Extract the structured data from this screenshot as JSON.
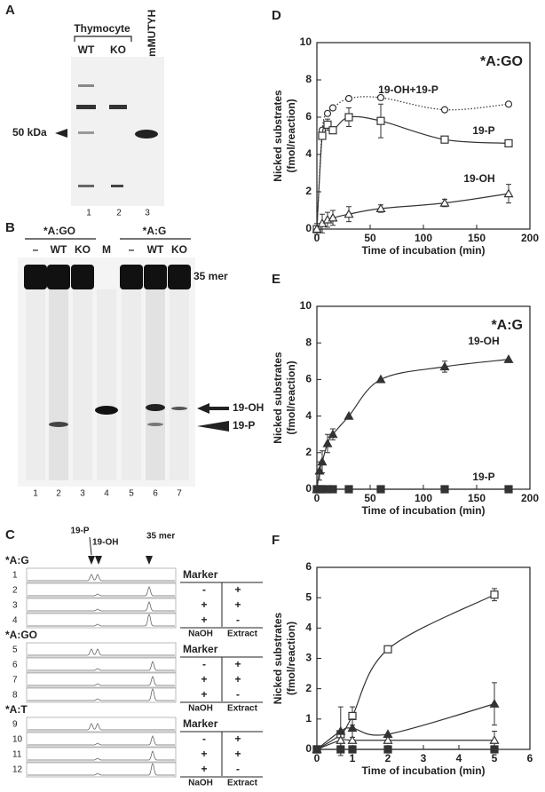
{
  "panels": {
    "A": {
      "label": "A",
      "group": "Thymocyte",
      "lanes": [
        "WT",
        "KO",
        "mMUTYH"
      ],
      "marker": "50 kDa",
      "numbers": [
        "1",
        "2",
        "3"
      ]
    },
    "B": {
      "label": "B",
      "groups": [
        "*A:GO",
        "*A:G"
      ],
      "lanes": [
        "–",
        "WT",
        "KO",
        "M",
        "–",
        "WT",
        "KO"
      ],
      "bands": [
        "35 mer",
        "19-OH",
        "19-P"
      ],
      "numbers": [
        "1",
        "2",
        "3",
        "4",
        "5",
        "6",
        "7"
      ]
    },
    "C": {
      "label": "C",
      "peaks": [
        "19-P",
        "19-OH",
        "35 mer"
      ],
      "groups": [
        {
          "name": "*A:G",
          "rows": [
            "1",
            "2",
            "3",
            "4"
          ]
        },
        {
          "name": "*A:GO",
          "rows": [
            "5",
            "6",
            "7",
            "8"
          ]
        },
        {
          "name": "*A:T",
          "rows": [
            "9",
            "10",
            "11",
            "12"
          ]
        }
      ],
      "table": {
        "header": "Marker",
        "rows": [
          [
            "-",
            "+"
          ],
          [
            "+",
            "+"
          ],
          [
            "+",
            "-"
          ]
        ],
        "footer": [
          "NaOH",
          "Extract"
        ]
      }
    }
  },
  "chart_data": [
    {
      "type": "line",
      "panel": "D",
      "title": "*A:GO",
      "xlabel": "Time of incubation (min)",
      "ylabel": [
        "Nicked substrates",
        "(fmol/reaction)"
      ],
      "x": [
        0,
        5,
        10,
        15,
        30,
        60,
        120,
        180
      ],
      "xlim": [
        0,
        200
      ],
      "xticks": [
        0,
        50,
        100,
        150,
        200
      ],
      "ylim": [
        0,
        10
      ],
      "yticks": [
        0,
        2,
        4,
        6,
        8,
        10
      ],
      "series": [
        {
          "name": "19-OH+19-P",
          "color": "#333333",
          "marker": "circle",
          "filled": false,
          "line": "dotted",
          "values": [
            0,
            5.3,
            6.2,
            6.5,
            7.0,
            7.05,
            6.4,
            6.7
          ],
          "errors": [
            null,
            null,
            null,
            null,
            null,
            null,
            null,
            null
          ]
        },
        {
          "name": "19-P",
          "color": "#333333",
          "marker": "square",
          "filled": false,
          "line": "solid",
          "values": [
            0,
            5.0,
            5.6,
            5.3,
            6.0,
            5.8,
            4.8,
            4.6
          ],
          "errors": [
            null,
            null,
            0.3,
            null,
            0.5,
            0.9,
            null,
            null
          ]
        },
        {
          "name": "19-OH",
          "color": "#333333",
          "marker": "triangle",
          "filled": false,
          "line": "solid",
          "values": [
            0,
            0.3,
            0.5,
            0.6,
            0.8,
            1.1,
            1.4,
            1.9
          ],
          "errors": [
            0.3,
            0.5,
            0.4,
            0.4,
            0.4,
            0.2,
            0.2,
            0.5
          ]
        }
      ]
    },
    {
      "type": "line",
      "panel": "E",
      "title": "*A:G",
      "xlabel": "Time of incubation (min)",
      "ylabel": [
        "Nicked substrates",
        "(fmol/reaction)"
      ],
      "x": [
        0,
        2.5,
        5,
        10,
        15,
        30,
        60,
        120,
        180
      ],
      "xlim": [
        0,
        200
      ],
      "xticks": [
        0,
        50,
        100,
        150,
        200
      ],
      "ylim": [
        0,
        10
      ],
      "yticks": [
        0,
        2,
        4,
        6,
        8,
        10
      ],
      "series": [
        {
          "name": "19-OH",
          "color": "#333333",
          "marker": "triangle",
          "filled": true,
          "line": "solid",
          "values": [
            0,
            1.0,
            1.5,
            2.5,
            3.0,
            4.0,
            6.0,
            6.7,
            7.1
          ],
          "errors": [
            null,
            0.5,
            0.6,
            0.5,
            0.3,
            null,
            null,
            0.3,
            null
          ]
        },
        {
          "name": "19-P",
          "color": "#333333",
          "marker": "square",
          "filled": true,
          "line": "solid",
          "values": [
            0,
            0,
            0,
            0,
            0,
            0,
            0,
            0,
            0
          ],
          "errors": [
            null,
            null,
            null,
            null,
            null,
            null,
            null,
            null,
            null
          ]
        }
      ]
    },
    {
      "type": "line",
      "panel": "F",
      "xlabel": "Time of incubation (min)",
      "ylabel": [
        "Nicked substrates",
        "(fmol/reaction)"
      ],
      "x": [
        0,
        0.67,
        1,
        2,
        5
      ],
      "xlim": [
        0,
        6
      ],
      "xticks": [
        0,
        1,
        2,
        3,
        4,
        5,
        6
      ],
      "ylim": [
        0,
        6
      ],
      "yticks": [
        0,
        1,
        2,
        3,
        4,
        5,
        6
      ],
      "series": [
        {
          "color": "#333333",
          "marker": "square",
          "filled": false,
          "line": "solid",
          "values": [
            0,
            0.5,
            1.1,
            3.3,
            5.1
          ],
          "errors": [
            null,
            null,
            0.3,
            null,
            0.2
          ]
        },
        {
          "color": "#333333",
          "marker": "triangle",
          "filled": true,
          "line": "solid",
          "values": [
            0,
            0.6,
            0.7,
            0.5,
            1.5
          ],
          "errors": [
            null,
            0.8,
            0.3,
            null,
            0.7
          ]
        },
        {
          "color": "#333333",
          "marker": "triangle",
          "filled": false,
          "line": "solid",
          "values": [
            0,
            0.3,
            0.3,
            0.3,
            0.3
          ],
          "errors": [
            null,
            0.2,
            null,
            null,
            0.3
          ]
        },
        {
          "color": "#333333",
          "marker": "square",
          "filled": true,
          "line": "solid",
          "values": [
            0,
            0,
            0,
            0,
            0
          ],
          "errors": [
            null,
            null,
            null,
            null,
            null
          ]
        }
      ]
    }
  ]
}
